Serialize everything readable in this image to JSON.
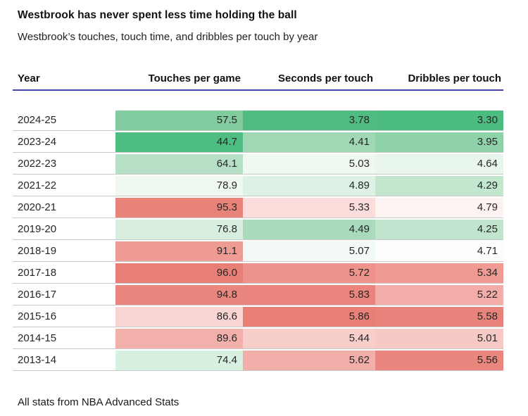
{
  "title": "Westbrook has never spent less time holding the ball",
  "subtitle": "Westbrook’s touches, touch time, and dribbles per touch by year",
  "footer": "All stats from NBA Advanced Stats",
  "colors": {
    "header_rule": "#4444b4",
    "row_separator": "#c9c9c9",
    "text": "#262626",
    "scale_low_green": "#4dbd81",
    "scale_mid_white": "#ffffff",
    "scale_high_red": "#e87f77"
  },
  "table": {
    "columns": {
      "year": "Year",
      "touches": "Touches per game",
      "seconds": "Seconds per touch",
      "dribbles": "Dribbles per touch"
    },
    "rows": [
      {
        "year": "2024-25",
        "cells": [
          {
            "value": "57.5",
            "color": "#82cb9f"
          },
          {
            "value": "3.78",
            "color": "#50bc81"
          },
          {
            "value": "3.30",
            "color": "#4cbc80"
          }
        ]
      },
      {
        "year": "2023-24",
        "cells": [
          {
            "value": "44.7",
            "color": "#4ebd81"
          },
          {
            "value": "4.41",
            "color": "#a0d7b4"
          },
          {
            "value": "3.95",
            "color": "#8fd1a8"
          }
        ]
      },
      {
        "year": "2022-23",
        "cells": [
          {
            "value": "64.1",
            "color": "#b5e0c5"
          },
          {
            "value": "5.03",
            "color": "#eff8f1"
          },
          {
            "value": "4.64",
            "color": "#e9f6ed"
          }
        ]
      },
      {
        "year": "2021-22",
        "cells": [
          {
            "value": "78.9",
            "color": "#eef8f0"
          },
          {
            "value": "4.89",
            "color": "#ddf2e4"
          },
          {
            "value": "4.29",
            "color": "#c3e6cf"
          }
        ]
      },
      {
        "year": "2020-21",
        "cells": [
          {
            "value": "95.3",
            "color": "#e8837a"
          },
          {
            "value": "5.33",
            "color": "#fbdedc"
          },
          {
            "value": "4.79",
            "color": "#fdf3f2"
          }
        ]
      },
      {
        "year": "2019-20",
        "cells": [
          {
            "value": "76.8",
            "color": "#d8efdf"
          },
          {
            "value": "4.49",
            "color": "#a8dabb"
          },
          {
            "value": "4.25",
            "color": "#c0e4cd"
          }
        ]
      },
      {
        "year": "2018-19",
        "cells": [
          {
            "value": "91.1",
            "color": "#ee9b93"
          },
          {
            "value": "5.07",
            "color": "#f3faf5"
          },
          {
            "value": "4.71",
            "color": "#fcfdfc"
          }
        ]
      },
      {
        "year": "2017-18",
        "cells": [
          {
            "value": "96.0",
            "color": "#e87f77"
          },
          {
            "value": "5.72",
            "color": "#ed938b"
          },
          {
            "value": "5.34",
            "color": "#ef9b93"
          }
        ]
      },
      {
        "year": "2016-17",
        "cells": [
          {
            "value": "94.8",
            "color": "#e9867d"
          },
          {
            "value": "5.83",
            "color": "#e9857c"
          },
          {
            "value": "5.22",
            "color": "#f2ada8"
          }
        ]
      },
      {
        "year": "2015-16",
        "cells": [
          {
            "value": "86.6",
            "color": "#f8d4d2"
          },
          {
            "value": "5.86",
            "color": "#e88078"
          },
          {
            "value": "5.58",
            "color": "#e8837b"
          }
        ]
      },
      {
        "year": "2014-15",
        "cells": [
          {
            "value": "89.6",
            "color": "#f2b0ab"
          },
          {
            "value": "5.44",
            "color": "#f8cecb"
          },
          {
            "value": "5.01",
            "color": "#f7c9c6"
          }
        ]
      },
      {
        "year": "2013-14",
        "cells": [
          {
            "value": "74.4",
            "color": "#d8f0e0"
          },
          {
            "value": "5.62",
            "color": "#f2aea9"
          },
          {
            "value": "5.56",
            "color": "#e9867e"
          }
        ]
      }
    ]
  },
  "chart_data": {
    "type": "heatmap",
    "title": "Westbrook has never spent less time holding the ball",
    "subtitle": "Westbrook’s touches, touch time, and dribbles per touch by year",
    "categories": [
      "2024-25",
      "2023-24",
      "2022-23",
      "2021-22",
      "2020-21",
      "2019-20",
      "2018-19",
      "2017-18",
      "2016-17",
      "2015-16",
      "2014-15",
      "2013-14"
    ],
    "series": [
      {
        "name": "Touches per game",
        "values": [
          57.5,
          44.7,
          64.1,
          78.9,
          95.3,
          76.8,
          91.1,
          96.0,
          94.8,
          86.6,
          89.6,
          74.4
        ]
      },
      {
        "name": "Seconds per touch",
        "values": [
          3.78,
          4.41,
          5.03,
          4.89,
          5.33,
          4.49,
          5.07,
          5.72,
          5.83,
          5.86,
          5.44,
          5.62
        ]
      },
      {
        "name": "Dribbles per touch",
        "values": [
          3.3,
          3.95,
          4.64,
          4.29,
          4.79,
          4.25,
          4.71,
          5.34,
          5.22,
          5.58,
          5.01,
          5.56
        ]
      }
    ],
    "color_scale": {
      "low": "#4dbd81",
      "mid": "#ffffff",
      "high": "#e87f77",
      "note": "diverging scale per column: green = low value, red = high value"
    },
    "legend_position": "none",
    "grid": false,
    "source_note": "All stats from NBA Advanced Stats"
  }
}
